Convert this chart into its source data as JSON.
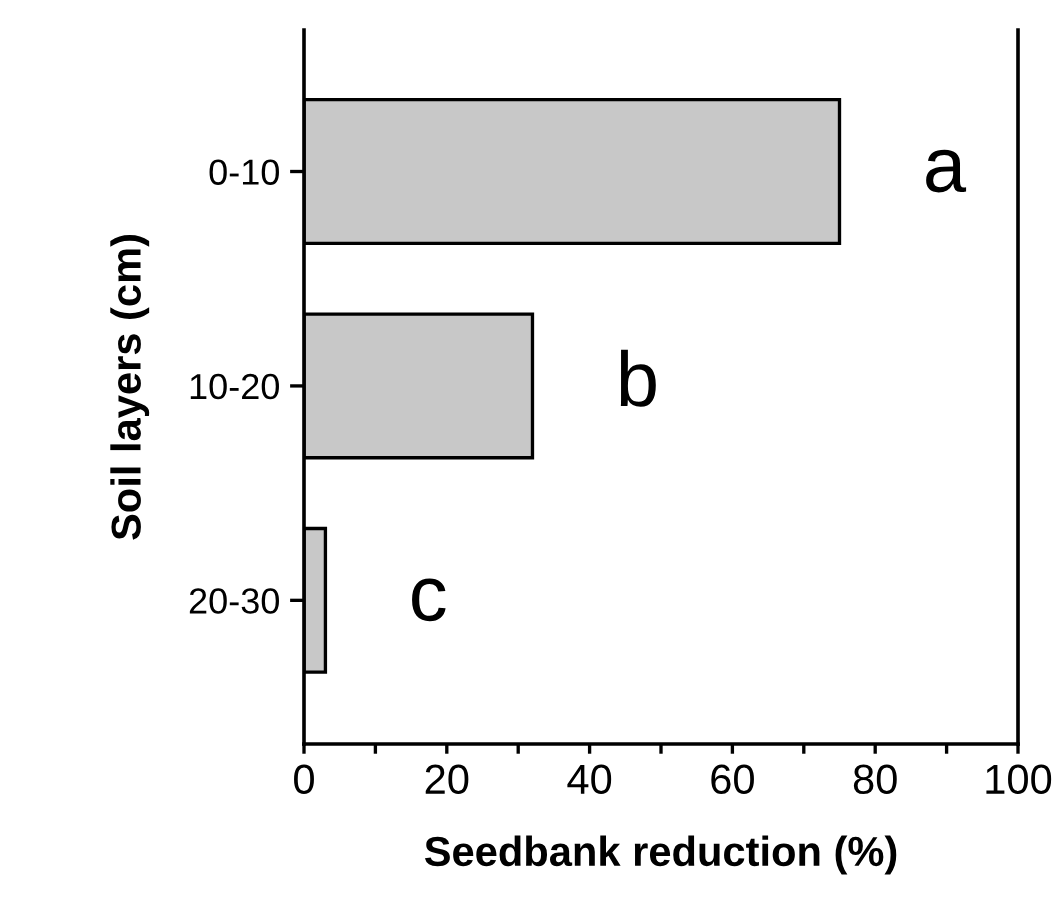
{
  "chart_data": {
    "type": "bar",
    "orientation": "horizontal",
    "xlabel": "Seedbank reduction (%)",
    "ylabel": "Soil layers (cm)",
    "categories": [
      "0-10",
      "10-20",
      "20-30"
    ],
    "values": [
      75,
      32,
      3
    ],
    "color": "#c8c8c8",
    "xlim": [
      0,
      100
    ],
    "xticks": [
      0,
      {
        "value": 10,
        "label": null
      },
      20,
      {
        "value": 30,
        "label": null
      },
      40,
      {
        "value": 50,
        "label": null
      },
      60,
      {
        "value": 70,
        "label": null
      },
      80,
      {
        "value": 90,
        "label": null
      },
      100
    ],
    "grid": false,
    "legend": false,
    "annotations": [
      "a",
      "b",
      "c"
    ]
  }
}
